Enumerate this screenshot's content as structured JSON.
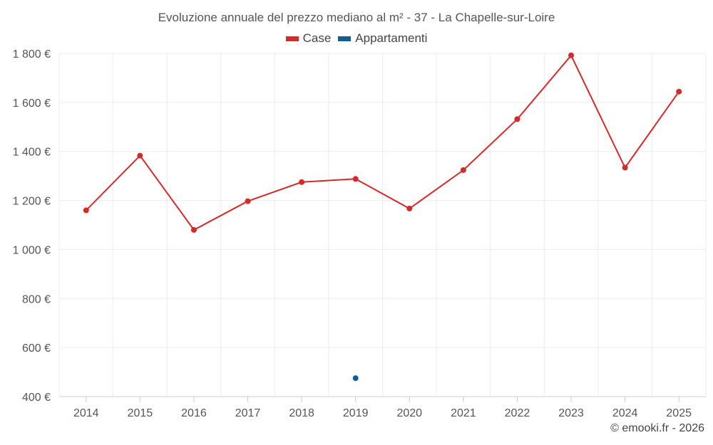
{
  "chart_data": {
    "type": "line",
    "title": "Evoluzione annuale del prezzo mediano al m² - 37 - La Chapelle-sur-Loire",
    "categories": [
      "2014",
      "2015",
      "2016",
      "2017",
      "2018",
      "2019",
      "2020",
      "2021",
      "2022",
      "2023",
      "2024",
      "2025"
    ],
    "series": [
      {
        "name": "Case",
        "color": "#d42a2a",
        "values": [
          1160,
          1383,
          1080,
          1197,
          1275,
          1288,
          1167,
          1324,
          1532,
          1792,
          1334,
          1644
        ]
      },
      {
        "name": "Appartamenti",
        "color": "#0e5f99",
        "values": [
          null,
          null,
          null,
          null,
          null,
          475,
          null,
          null,
          null,
          null,
          null,
          null
        ]
      }
    ],
    "y_ticks": [
      "400 €",
      "600 €",
      "800 €",
      "1 000 €",
      "1 200 €",
      "1 400 €",
      "1 600 €",
      "1 800 €"
    ],
    "ylim": [
      400,
      1800
    ],
    "grid": true,
    "legend_position": "top-center"
  },
  "credits": "© emooki.fr - 2026"
}
